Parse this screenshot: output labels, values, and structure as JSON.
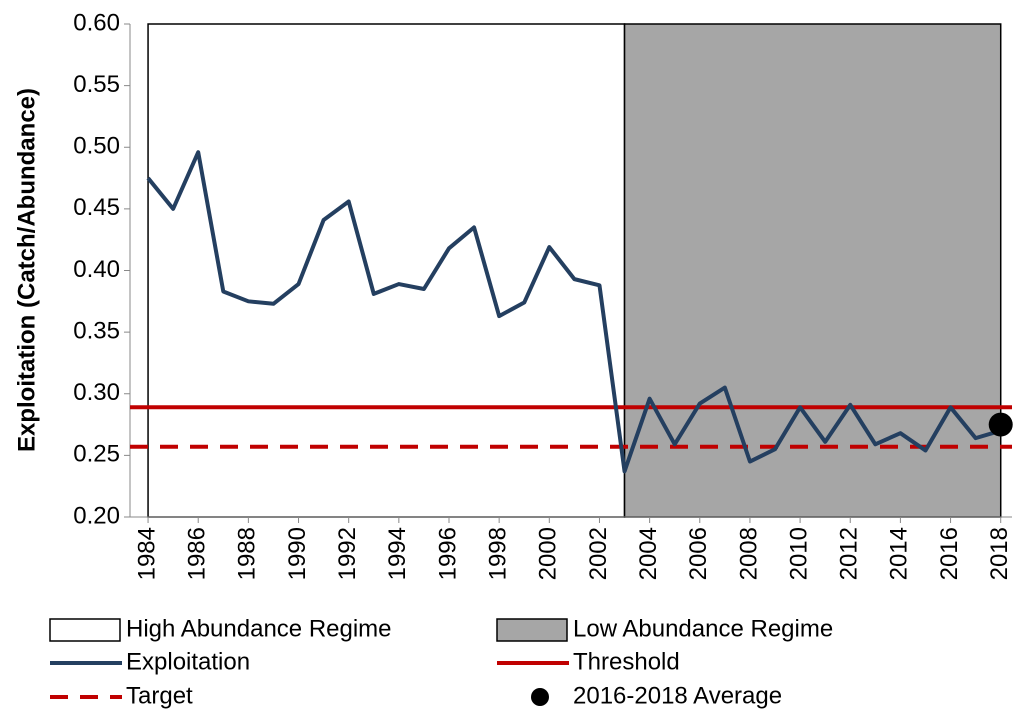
{
  "chart_data": {
    "type": "line",
    "y_label": "Exploitation (Catch/Abundance)",
    "x": [
      1984,
      1985,
      1986,
      1987,
      1988,
      1989,
      1990,
      1991,
      1992,
      1993,
      1994,
      1995,
      1996,
      1997,
      1998,
      1999,
      2000,
      2001,
      2002,
      2003,
      2004,
      2005,
      2006,
      2007,
      2008,
      2009,
      2010,
      2011,
      2012,
      2013,
      2014,
      2015,
      2016,
      2017,
      2018
    ],
    "series": [
      {
        "name": "Exploitation",
        "color": "#243f60",
        "values": [
          0.475,
          0.45,
          0.496,
          0.383,
          0.375,
          0.373,
          0.389,
          0.441,
          0.456,
          0.381,
          0.389,
          0.385,
          0.418,
          0.435,
          0.363,
          0.374,
          0.419,
          0.393,
          0.388,
          0.237,
          0.296,
          0.259,
          0.292,
          0.305,
          0.245,
          0.255,
          0.289,
          0.261,
          0.291,
          0.259,
          0.268,
          0.254,
          0.289,
          0.264,
          0.27
        ]
      }
    ],
    "reference_lines": [
      {
        "name": "Threshold",
        "color": "#c00000",
        "value": 0.289,
        "dashed": false
      },
      {
        "name": "Target",
        "color": "#c00000",
        "value": 0.257,
        "dashed": true
      }
    ],
    "average_point": {
      "name": "2016-2018 Average",
      "color": "#000000",
      "x": 2018,
      "value": 0.275
    },
    "regimes": [
      {
        "name": "High Abundance Regime",
        "color": "#ffffff",
        "start": 1984,
        "end": 2003
      },
      {
        "name": "Low Abundance Regime",
        "color": "#a6a6a6",
        "start": 2003,
        "end": 2018
      }
    ],
    "xlim": [
      1983.28,
      2018.45
    ],
    "xticks": [
      1984,
      1986,
      1988,
      1990,
      1992,
      1994,
      1996,
      1998,
      2000,
      2002,
      2004,
      2006,
      2008,
      2010,
      2012,
      2014,
      2016,
      2018
    ],
    "ylim": [
      0.2,
      0.6
    ],
    "yticks": [
      {
        "value": 0.2,
        "label": "0.20"
      },
      {
        "value": 0.25,
        "label": "0.25"
      },
      {
        "value": 0.3,
        "label": "0.30"
      },
      {
        "value": 0.35,
        "label": "0.35"
      },
      {
        "value": 0.4,
        "label": "0.40"
      },
      {
        "value": 0.45,
        "label": "0.45"
      },
      {
        "value": 0.5,
        "label": "0.50"
      },
      {
        "value": 0.55,
        "label": "0.55"
      },
      {
        "value": 0.6,
        "label": "0.60"
      }
    ]
  }
}
